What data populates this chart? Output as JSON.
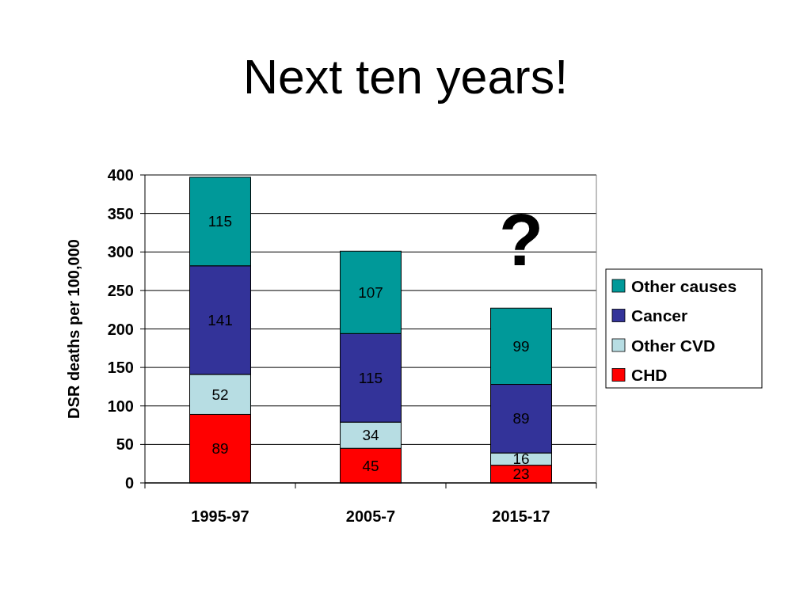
{
  "chart_data": {
    "type": "bar",
    "title": "Next ten years!",
    "ylabel": "DSR deaths per 100,000",
    "categories": [
      "1995-97",
      "2005-7",
      "2015-17"
    ],
    "series": [
      {
        "name": "CHD",
        "color": "#ff0000",
        "values": [
          89,
          45,
          23
        ]
      },
      {
        "name": "Other CVD",
        "color": "#b7dde3",
        "values": [
          52,
          34,
          16
        ]
      },
      {
        "name": "Cancer",
        "color": "#333399",
        "values": [
          141,
          115,
          89
        ]
      },
      {
        "name": "Other causes",
        "color": "#009999",
        "values": [
          115,
          107,
          99
        ]
      }
    ],
    "stacked": true,
    "ylim": [
      0,
      400
    ],
    "yticks": [
      0,
      50,
      100,
      150,
      200,
      250,
      300,
      350,
      400
    ],
    "grid": "y",
    "legend": "right",
    "data_labels": true,
    "annotations": [
      "?"
    ]
  }
}
